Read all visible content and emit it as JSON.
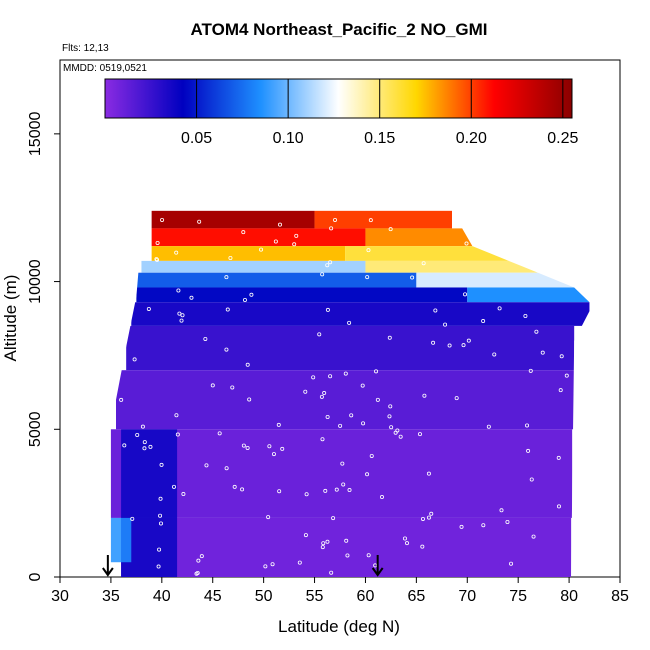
{
  "chart_data": {
    "type": "heatmap",
    "title": "ATOM4 Northeast_Pacific_2 NO_GMI",
    "annotations": [
      "Flts: 12,13",
      "MMDD: 0519,0521"
    ],
    "xlabel": "Latitude (deg N)",
    "ylabel": "Altitude (m)",
    "xlim": [
      30,
      85
    ],
    "ylim": [
      0,
      17500
    ],
    "x_ticks": [
      30,
      35,
      40,
      45,
      50,
      55,
      60,
      65,
      70,
      75,
      80,
      85
    ],
    "y_ticks": [
      0,
      5000,
      10000,
      15000
    ],
    "colorbar": {
      "range": [
        0.0,
        0.255
      ],
      "ticks": [
        "0.05",
        "0.10",
        "0.15",
        "0.20",
        "0.25"
      ],
      "tick_values": [
        0.05,
        0.1,
        0.15,
        0.2,
        0.25
      ],
      "palette": [
        "#8a2be2",
        "#0000c0",
        "#1e90ff",
        "#ffffff",
        "#ffd700",
        "#ff0000",
        "#8b0000"
      ]
    },
    "arrows_at_latitude": [
      34.7,
      61.2
    ],
    "domain_upper_edge": [
      {
        "lat": 34.7,
        "alt": 4800
      },
      {
        "lat": 35.5,
        "alt": 6000
      },
      {
        "lat": 36.5,
        "alt": 7800
      },
      {
        "lat": 37.5,
        "alt": 9500
      },
      {
        "lat": 38.2,
        "alt": 12400
      },
      {
        "lat": 68.5,
        "alt": 12400
      },
      {
        "lat": 70.5,
        "alt": 11200
      },
      {
        "lat": 75.5,
        "alt": 10500
      },
      {
        "lat": 80.5,
        "alt": 9800
      },
      {
        "lat": 82.0,
        "alt": 9300
      }
    ],
    "domain_lower_edge": [
      {
        "lat": 82.0,
        "alt": 9000
      },
      {
        "lat": 80.5,
        "alt": 8000
      },
      {
        "lat": 80.2,
        "alt": 0
      },
      {
        "lat": 36.0,
        "alt": 0
      },
      {
        "lat": 34.7,
        "alt": 500
      }
    ],
    "altitude_bands": [
      {
        "alt_min": 11800,
        "alt_max": 12400,
        "value": 0.245,
        "lat_min": 39.0,
        "lat_max": 55.0
      },
      {
        "alt_min": 11800,
        "alt_max": 12400,
        "value": 0.2,
        "lat_min": 55.0,
        "lat_max": 68.5
      },
      {
        "alt_min": 11200,
        "alt_max": 11800,
        "value": 0.21,
        "lat_min": 39.0,
        "lat_max": 60.0
      },
      {
        "alt_min": 11200,
        "alt_max": 11800,
        "value": 0.185,
        "lat_min": 60.0,
        "lat_max": 70.5
      },
      {
        "alt_min": 10700,
        "alt_max": 11200,
        "value": 0.175,
        "lat_min": 39.0,
        "lat_max": 58.0
      },
      {
        "alt_min": 10700,
        "alt_max": 11200,
        "value": 0.16,
        "lat_min": 58.0,
        "lat_max": 75.5
      },
      {
        "alt_min": 10300,
        "alt_max": 10700,
        "value": 0.11,
        "lat_min": 38.0,
        "lat_max": 60.0
      },
      {
        "alt_min": 10300,
        "alt_max": 10700,
        "value": 0.15,
        "lat_min": 60.0,
        "lat_max": 80.5
      },
      {
        "alt_min": 9800,
        "alt_max": 10300,
        "value": 0.07,
        "lat_min": 37.5,
        "lat_max": 65.0
      },
      {
        "alt_min": 9800,
        "alt_max": 10300,
        "value": 0.12,
        "lat_min": 65.0,
        "lat_max": 80.5
      },
      {
        "alt_min": 9300,
        "alt_max": 9800,
        "value": 0.045,
        "lat_min": 37.5,
        "lat_max": 70.0
      },
      {
        "alt_min": 9300,
        "alt_max": 9800,
        "value": 0.085,
        "lat_min": 70.0,
        "lat_max": 82.0
      },
      {
        "alt_min": 8500,
        "alt_max": 9300,
        "value": 0.035,
        "lat_min": 37.0,
        "lat_max": 82.0
      },
      {
        "alt_min": 7000,
        "alt_max": 8500,
        "value": 0.025,
        "lat_min": 36.5,
        "lat_max": 80.5
      },
      {
        "alt_min": 5000,
        "alt_max": 7000,
        "value": 0.015,
        "lat_min": 35.5,
        "lat_max": 80.5
      },
      {
        "alt_min": 2000,
        "alt_max": 5000,
        "value": 0.01,
        "lat_min": 35.0,
        "lat_max": 80.3
      },
      {
        "alt_min": 0,
        "alt_max": 2000,
        "value": 0.008,
        "lat_min": 36.0,
        "lat_max": 80.2
      }
    ],
    "features": [
      {
        "name": "low-latitude blue column",
        "lat_min": 36.0,
        "lat_max": 41.5,
        "alt_min": 0,
        "alt_max": 5000,
        "value": 0.04
      },
      {
        "name": "coastal light-blue patch",
        "lat_min": 35.0,
        "lat_max": 37.0,
        "alt_min": 500,
        "alt_max": 2000,
        "value": 0.085
      }
    ]
  }
}
